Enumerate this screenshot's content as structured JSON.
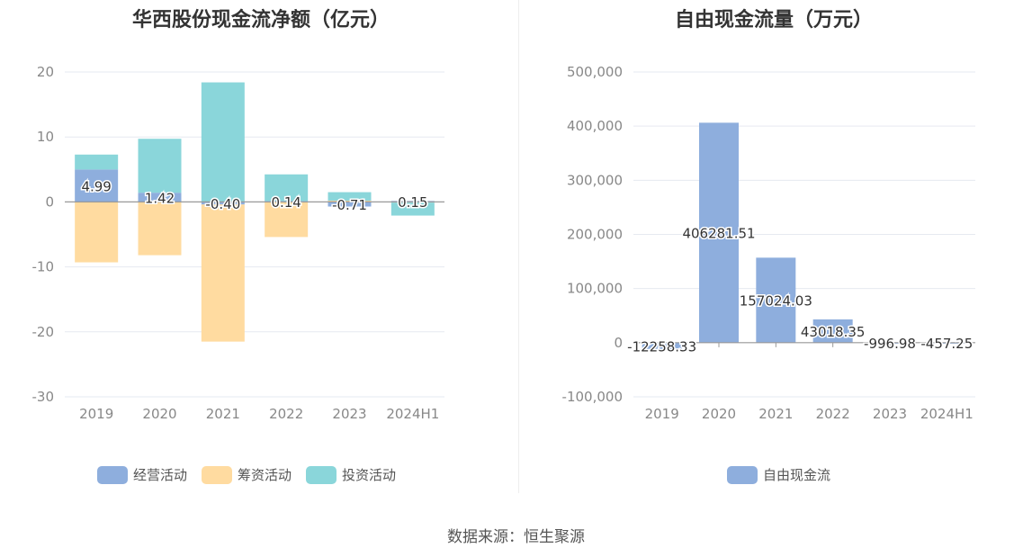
{
  "source_text": "数据来源：恒生聚源",
  "chart_data": [
    {
      "type": "bar",
      "stacked": true,
      "title": "华西股份现金流净额（亿元）",
      "categories": [
        "2019",
        "2020",
        "2021",
        "2022",
        "2023",
        "2024H1"
      ],
      "ylim": [
        -30,
        20
      ],
      "yticks": [
        20,
        10,
        0,
        -10,
        -20,
        -30
      ],
      "grid": true,
      "legend_position": "bottom",
      "series": [
        {
          "name": "经营活动",
          "color": "#8eaedd",
          "values": [
            4.99,
            1.42,
            -0.4,
            0.14,
            -0.71,
            0.15
          ]
        },
        {
          "name": "筹资活动",
          "color": "#ffdba0",
          "values": [
            -9.3,
            -8.2,
            -21.1,
            -5.4,
            0.2,
            -0.1
          ]
        },
        {
          "name": "投资活动",
          "color": "#8ad6da",
          "values": [
            2.3,
            8.3,
            18.4,
            4.1,
            1.3,
            -2.0
          ]
        }
      ],
      "data_labels": [
        "4.99",
        "1.42",
        "-0.40",
        "0.14",
        "-0.71",
        "0.15"
      ]
    },
    {
      "type": "bar",
      "title": "自由现金流量（万元）",
      "categories": [
        "2019",
        "2020",
        "2021",
        "2022",
        "2023",
        "2024H1"
      ],
      "ylim": [
        -100000,
        500000
      ],
      "yticks": [
        500000,
        400000,
        300000,
        200000,
        100000,
        0,
        -100000
      ],
      "ytick_labels": [
        "500,000",
        "400,000",
        "300,000",
        "200,000",
        "100,000",
        "0",
        "-100,000"
      ],
      "grid": true,
      "legend_position": "bottom",
      "series": [
        {
          "name": "自由现金流",
          "color": "#8eaedd",
          "values": [
            -12258.33,
            406281.51,
            157024.03,
            43018.35,
            -996.98,
            -457.25
          ]
        }
      ],
      "data_labels": [
        "-12258.33",
        "406281.51",
        "157024.03",
        "43018.35",
        "-996.98",
        "-457.25"
      ]
    }
  ]
}
